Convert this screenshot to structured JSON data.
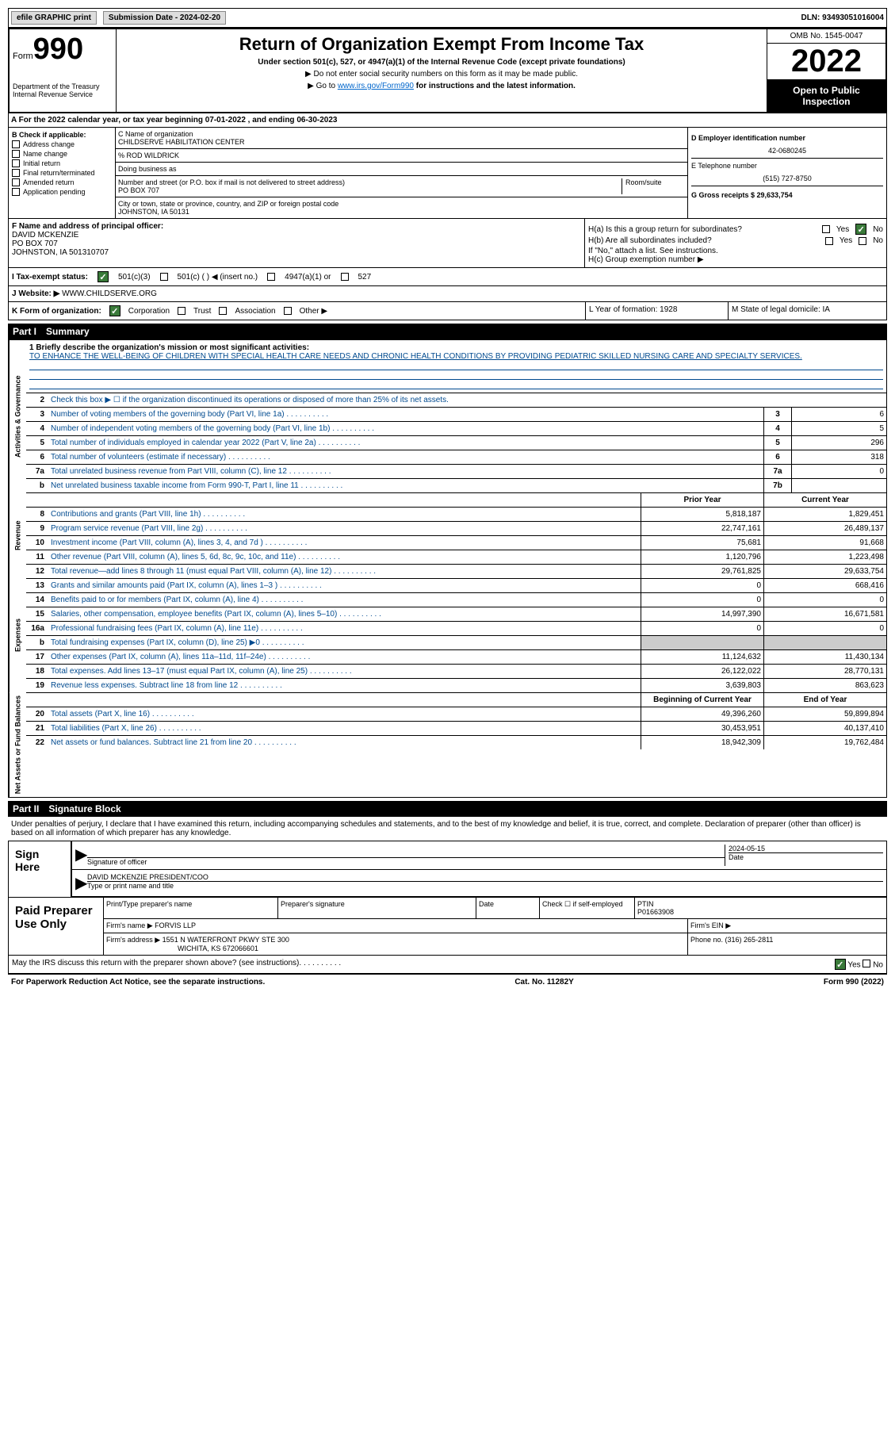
{
  "top": {
    "efile": "efile GRAPHIC print",
    "submission": "Submission Date - 2024-02-20",
    "dln": "DLN: 93493051016004"
  },
  "header": {
    "form_label": "Form",
    "form_number": "990",
    "dept": "Department of the Treasury Internal Revenue Service",
    "title": "Return of Organization Exempt From Income Tax",
    "subtitle": "Under section 501(c), 527, or 4947(a)(1) of the Internal Revenue Code (except private foundations)",
    "instruct1": "▶ Do not enter social security numbers on this form as it may be made public.",
    "instruct2_pre": "▶ Go to ",
    "instruct2_link": "www.irs.gov/Form990",
    "instruct2_post": " for instructions and the latest information.",
    "omb": "OMB No. 1545-0047",
    "year": "2022",
    "open": "Open to Public Inspection"
  },
  "lineA": "A For the 2022 calendar year, or tax year beginning 07-01-2022    , and ending 06-30-2023",
  "sectionB": {
    "label": "B Check if applicable:",
    "items": [
      "Address change",
      "Name change",
      "Initial return",
      "Final return/terminated",
      "Amended return",
      "Application pending"
    ]
  },
  "sectionC": {
    "name_label": "C Name of organization",
    "name": "CHILDSERVE HABILITATION CENTER",
    "care_of": "% ROD WILDRICK",
    "dba_label": "Doing business as",
    "addr_label": "Number and street (or P.O. box if mail is not delivered to street address)",
    "room_label": "Room/suite",
    "addr": "PO BOX 707",
    "city_label": "City or town, state or province, country, and ZIP or foreign postal code",
    "city": "JOHNSTON, IA  50131"
  },
  "sectionD": {
    "ein_label": "D Employer identification number",
    "ein": "42-0680245",
    "phone_label": "E Telephone number",
    "phone": "(515) 727-8750",
    "gross_label": "G Gross receipts $ 29,633,754"
  },
  "sectionF": {
    "label": "F  Name and address of principal officer:",
    "name": "DAVID MCKENZIE",
    "addr": "PO BOX 707",
    "city": "JOHNSTON, IA  501310707"
  },
  "sectionH": {
    "ha": "H(a)  Is this a group return for subordinates?",
    "hb": "H(b)  Are all subordinates included?",
    "hb_note": "If \"No,\" attach a list. See instructions.",
    "hc": "H(c)  Group exemption number ▶",
    "yes": "Yes",
    "no": "No"
  },
  "taxStatus": {
    "label": "I   Tax-exempt status:",
    "opt1": "501(c)(3)",
    "opt2": "501(c) (  ) ◀ (insert no.)",
    "opt3": "4947(a)(1) or",
    "opt4": "527"
  },
  "website": {
    "label": "J  Website: ▶",
    "value": "WWW.CHILDSERVE.ORG"
  },
  "formOrg": {
    "k_label": "K Form of organization:",
    "corp": "Corporation",
    "trust": "Trust",
    "assoc": "Association",
    "other": "Other ▶",
    "l": "L Year of formation: 1928",
    "m": "M State of legal domicile: IA"
  },
  "part1": {
    "header_num": "Part I",
    "header_title": "Summary",
    "l1_label": "1  Briefly describe the organization's mission or most significant activities:",
    "l1_text": "TO ENHANCE THE WELL-BEING OF CHILDREN WITH SPECIAL HEALTH CARE NEEDS AND CHRONIC HEALTH CONDITIONS BY PROVIDING PEDIATRIC SKILLED NURSING CARE AND SPECIALTY SERVICES.",
    "l2": "Check this box ▶ ☐ if the organization discontinued its operations or disposed of more than 25% of its net assets.",
    "vtab1": "Activities & Governance",
    "vtab2": "Revenue",
    "vtab3": "Expenses",
    "vtab4": "Net Assets or Fund Balances",
    "rows_single": [
      {
        "n": "3",
        "d": "Number of voting members of the governing body (Part VI, line 1a)",
        "box": "3",
        "v": "6"
      },
      {
        "n": "4",
        "d": "Number of independent voting members of the governing body (Part VI, line 1b)",
        "box": "4",
        "v": "5"
      },
      {
        "n": "5",
        "d": "Total number of individuals employed in calendar year 2022 (Part V, line 2a)",
        "box": "5",
        "v": "296"
      },
      {
        "n": "6",
        "d": "Total number of volunteers (estimate if necessary)",
        "box": "6",
        "v": "318"
      },
      {
        "n": "7a",
        "d": "Total unrelated business revenue from Part VIII, column (C), line 12",
        "box": "7a",
        "v": "0"
      },
      {
        "n": "b",
        "d": "Net unrelated business taxable income from Form 990-T, Part I, line 11",
        "box": "7b",
        "v": ""
      }
    ],
    "py_label": "Prior Year",
    "cy_label": "Current Year",
    "rows_rev": [
      {
        "n": "8",
        "d": "Contributions and grants (Part VIII, line 1h)",
        "py": "5,818,187",
        "cy": "1,829,451"
      },
      {
        "n": "9",
        "d": "Program service revenue (Part VIII, line 2g)",
        "py": "22,747,161",
        "cy": "26,489,137"
      },
      {
        "n": "10",
        "d": "Investment income (Part VIII, column (A), lines 3, 4, and 7d )",
        "py": "75,681",
        "cy": "91,668"
      },
      {
        "n": "11",
        "d": "Other revenue (Part VIII, column (A), lines 5, 6d, 8c, 9c, 10c, and 11e)",
        "py": "1,120,796",
        "cy": "1,223,498"
      },
      {
        "n": "12",
        "d": "Total revenue—add lines 8 through 11 (must equal Part VIII, column (A), line 12)",
        "py": "29,761,825",
        "cy": "29,633,754"
      }
    ],
    "rows_exp": [
      {
        "n": "13",
        "d": "Grants and similar amounts paid (Part IX, column (A), lines 1–3 )",
        "py": "0",
        "cy": "668,416"
      },
      {
        "n": "14",
        "d": "Benefits paid to or for members (Part IX, column (A), line 4)",
        "py": "0",
        "cy": "0"
      },
      {
        "n": "15",
        "d": "Salaries, other compensation, employee benefits (Part IX, column (A), lines 5–10)",
        "py": "14,997,390",
        "cy": "16,671,581"
      },
      {
        "n": "16a",
        "d": "Professional fundraising fees (Part IX, column (A), line 11e)",
        "py": "0",
        "cy": "0"
      },
      {
        "n": "b",
        "d": "Total fundraising expenses (Part IX, column (D), line 25) ▶0",
        "py": "",
        "cy": "",
        "grey": true
      },
      {
        "n": "17",
        "d": "Other expenses (Part IX, column (A), lines 11a–11d, 11f–24e)",
        "py": "11,124,632",
        "cy": "11,430,134"
      },
      {
        "n": "18",
        "d": "Total expenses. Add lines 13–17 (must equal Part IX, column (A), line 25)",
        "py": "26,122,022",
        "cy": "28,770,131"
      },
      {
        "n": "19",
        "d": "Revenue less expenses. Subtract line 18 from line 12",
        "py": "3,639,803",
        "cy": "863,623"
      }
    ],
    "bcy_label": "Beginning of Current Year",
    "ey_label": "End of Year",
    "rows_net": [
      {
        "n": "20",
        "d": "Total assets (Part X, line 16)",
        "py": "49,396,260",
        "cy": "59,899,894"
      },
      {
        "n": "21",
        "d": "Total liabilities (Part X, line 26)",
        "py": "30,453,951",
        "cy": "40,137,410"
      },
      {
        "n": "22",
        "d": "Net assets or fund balances. Subtract line 21 from line 20",
        "py": "18,942,309",
        "cy": "19,762,484"
      }
    ]
  },
  "part2": {
    "header_num": "Part II",
    "header_title": "Signature Block",
    "declaration": "Under penalties of perjury, I declare that I have examined this return, including accompanying schedules and statements, and to the best of my knowledge and belief, it is true, correct, and complete. Declaration of preparer (other than officer) is based on all information of which preparer has any knowledge.",
    "sign_here": "Sign Here",
    "sig_officer": "Signature of officer",
    "date": "Date",
    "sig_date": "2024-05-15",
    "name_title": "DAVID MCKENZIE  PRESIDENT/COO",
    "type_label": "Type or print name and title",
    "paid": "Paid Preparer Use Only",
    "prep_name_label": "Print/Type preparer's name",
    "prep_sig_label": "Preparer's signature",
    "prep_date_label": "Date",
    "check_if": "Check ☐ if self-employed",
    "ptin_label": "PTIN",
    "ptin": "P01663908",
    "firm_name_label": "Firm's name     ▶",
    "firm_name": "FORVIS LLP",
    "firm_ein_label": "Firm's EIN ▶",
    "firm_addr_label": "Firm's address ▶",
    "firm_addr1": "1551 N WATERFRONT PKWY STE 300",
    "firm_addr2": "WICHITA, KS  672066601",
    "firm_phone_label": "Phone no. (316) 265-2811"
  },
  "footer": {
    "may": "May the IRS discuss this return with the preparer shown above? (see instructions)",
    "yes": "Yes",
    "no": "No",
    "paperwork": "For Paperwork Reduction Act Notice, see the separate instructions.",
    "cat": "Cat. No. 11282Y",
    "form": "Form 990 (2022)"
  }
}
